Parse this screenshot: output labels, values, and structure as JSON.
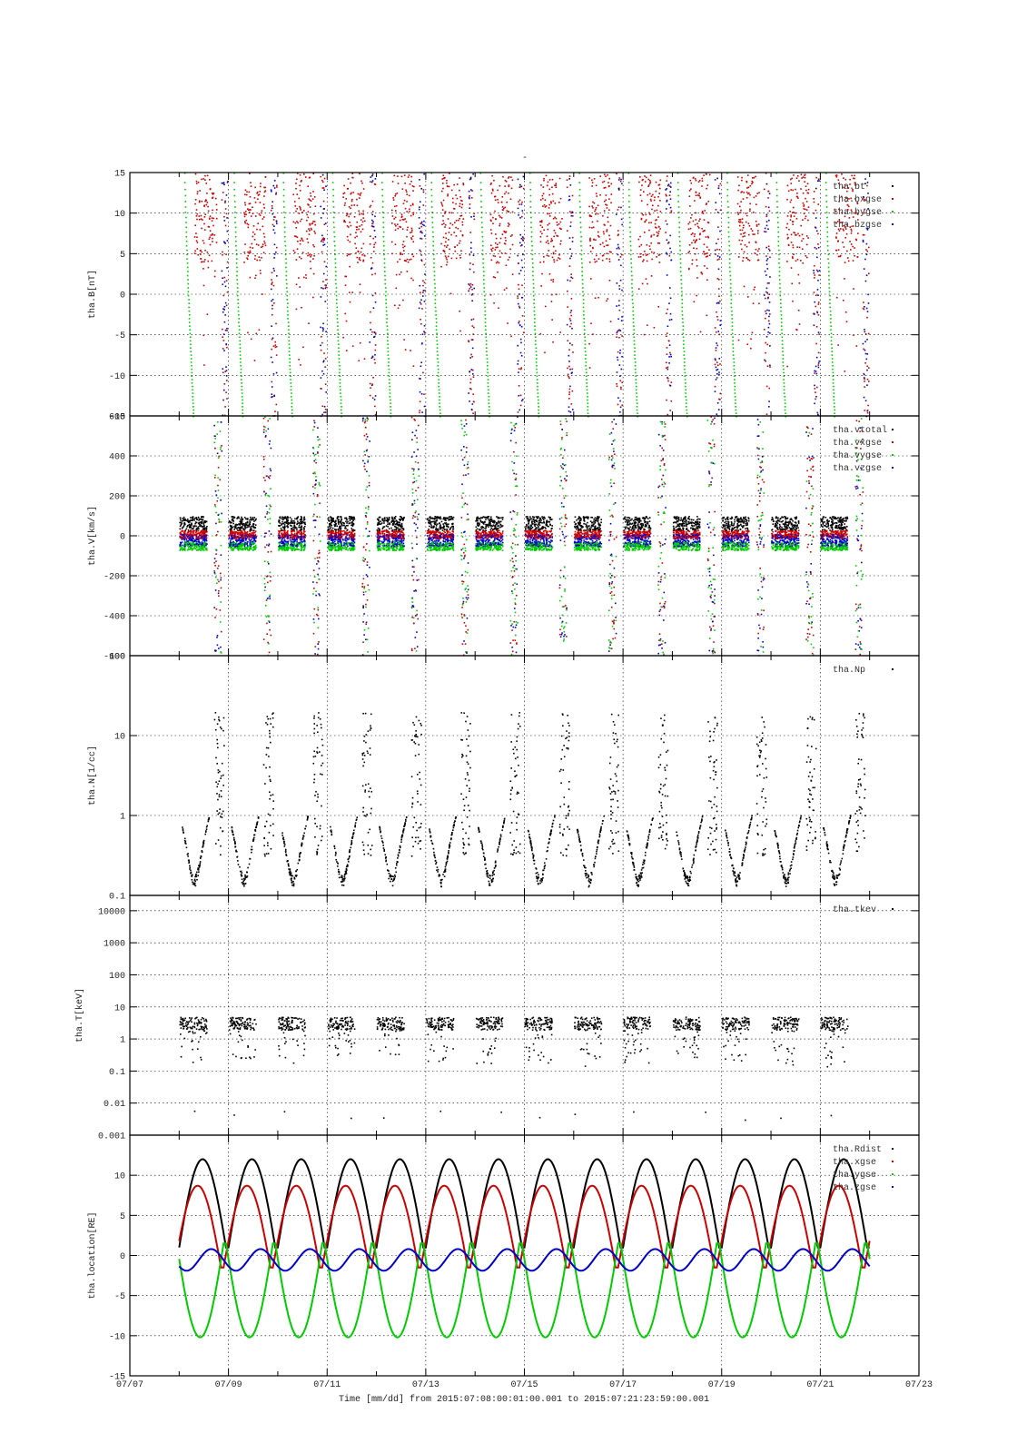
{
  "page": {
    "title": "-"
  },
  "xaxis": {
    "tick_labels": [
      "07/07",
      "07/09",
      "07/11",
      "07/13",
      "07/15",
      "07/17",
      "07/19",
      "07/21",
      "07/23"
    ],
    "xlabel": "Time [mm/dd]  from 2015:07:08:00:01:00.001  to  2015:07:21:23:59:00.001"
  },
  "colors": {
    "black": "#000000",
    "red": "#cc0000",
    "green": "#00cc00",
    "blue": "#0000cc",
    "grid": "#000000"
  },
  "chart_data": [
    {
      "type": "scatter",
      "ylabel": "tha.B[nT]",
      "ylim": [
        -15,
        15
      ],
      "yscale": "linear",
      "yticks": [
        15,
        10,
        5,
        0,
        -5,
        -10,
        -15
      ],
      "ytick_labels": [
        "15",
        "10",
        "5",
        "0",
        "-5",
        "-10",
        "-15"
      ],
      "grid": true,
      "legend_position": "top-right",
      "series": [
        {
          "name": "tha.bt",
          "color": "#000000"
        },
        {
          "name": "tha.bxgse",
          "color": "#cc0000"
        },
        {
          "name": "tha.bygse",
          "color": "#00cc00"
        },
        {
          "name": "tha.bzgse",
          "color": "#0000cc"
        }
      ]
    },
    {
      "type": "scatter",
      "ylabel": "tha.V[km/s]",
      "ylim": [
        -600,
        600
      ],
      "yscale": "linear",
      "yticks": [
        600,
        400,
        200,
        0,
        -200,
        -400,
        -600
      ],
      "ytick_labels": [
        "600",
        "400",
        "200",
        "0",
        "-200",
        "-400",
        "-600"
      ],
      "grid": true,
      "legend_position": "top-right",
      "series": [
        {
          "name": "tha.vtotal",
          "color": "#000000"
        },
        {
          "name": "tha.vxgse",
          "color": "#cc0000"
        },
        {
          "name": "tha.vygse",
          "color": "#00cc00"
        },
        {
          "name": "tha.vzgse",
          "color": "#0000cc"
        }
      ]
    },
    {
      "type": "scatter",
      "ylabel": "tha.N[1/cc]",
      "ylim": [
        0.1,
        100
      ],
      "yscale": "log",
      "yticks": [
        100,
        10,
        1,
        0.1
      ],
      "ytick_labels": [
        "100",
        "10",
        "1",
        "0.1"
      ],
      "grid": true,
      "legend_position": "top-right",
      "series": [
        {
          "name": "tha.Np",
          "color": "#000000"
        }
      ]
    },
    {
      "type": "scatter",
      "ylabel": "tha.T[keV]",
      "ylim": [
        0.001,
        30000
      ],
      "yscale": "log",
      "yticks": [
        10000,
        1000,
        100,
        10,
        1,
        0.1,
        0.01,
        0.001
      ],
      "ytick_labels": [
        "10000",
        "1000",
        "100",
        "10",
        "1",
        "0.1",
        "0.01",
        "0.001"
      ],
      "grid": true,
      "legend_position": "top-right",
      "series": [
        {
          "name": "tha.tkev",
          "color": "#000000"
        }
      ]
    },
    {
      "type": "line",
      "ylabel": "tha.location[RE]",
      "ylim": [
        -15,
        15
      ],
      "yscale": "linear",
      "yticks": [
        10,
        5,
        0,
        -5,
        -10,
        -15
      ],
      "ytick_labels": [
        "10",
        "5",
        "0",
        "-5",
        "-10",
        "-15"
      ],
      "grid": true,
      "legend_position": "top-right",
      "orbit_period_days": 1.0,
      "series": [
        {
          "name": "tha.Rdist",
          "color": "#000000",
          "max": 12.0,
          "min": 1.0
        },
        {
          "name": "tha.xgse",
          "color": "#cc0000",
          "max": 8.7,
          "min": -1.5
        },
        {
          "name": "tha.ygse",
          "color": "#00cc00",
          "max": 1.5,
          "min": -10.2
        },
        {
          "name": "tha.zgse",
          "color": "#0000cc",
          "max": 0.8,
          "min": -1.9
        }
      ]
    }
  ]
}
